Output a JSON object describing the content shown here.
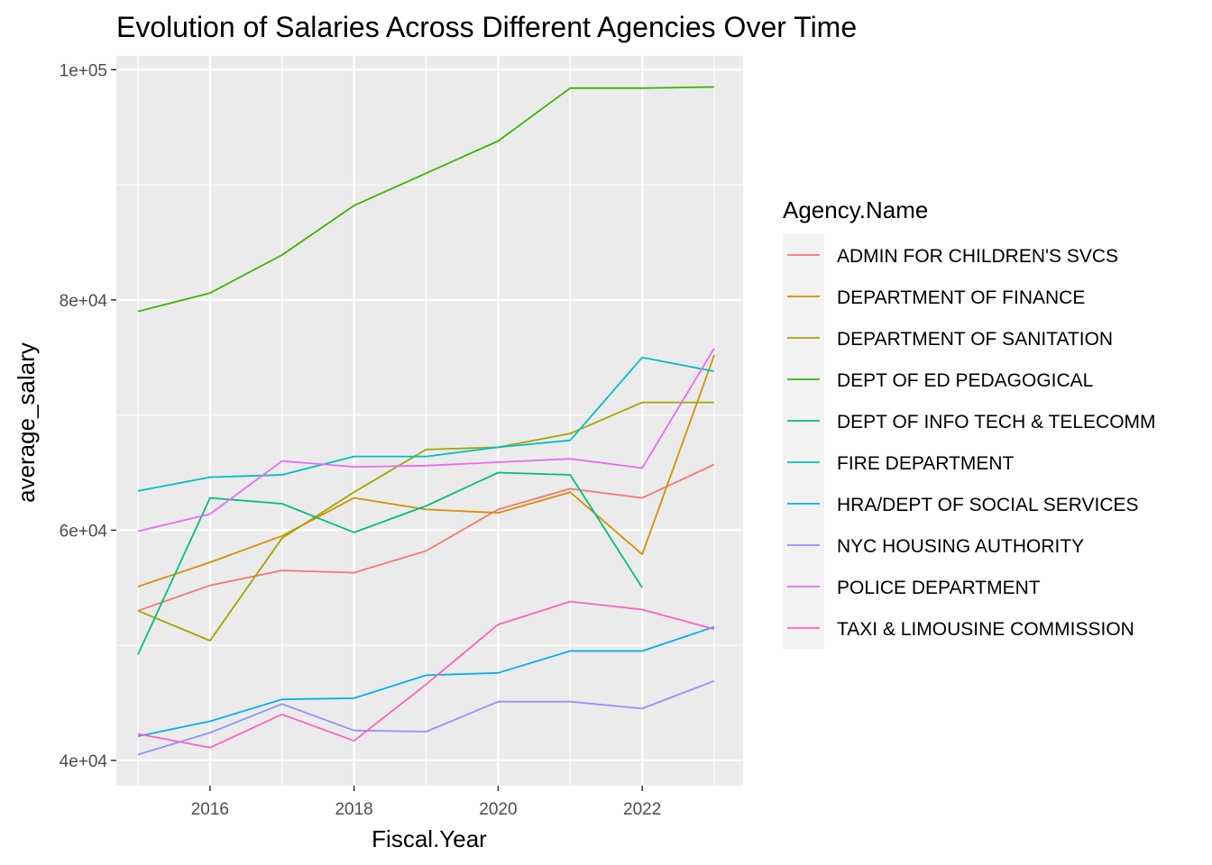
{
  "chart_data": {
    "type": "line",
    "title": "Evolution of Salaries Across Different Agencies Over Time",
    "xlabel": "Fiscal.Year",
    "ylabel": "average_salary",
    "xlim": [
      2014.7,
      2023.4
    ],
    "ylim": [
      37800,
      101200
    ],
    "x_ticks": [
      2016,
      2018,
      2020,
      2022
    ],
    "x_tick_labels": [
      "2016",
      "2018",
      "2020",
      "2022"
    ],
    "y_ticks": [
      40000,
      60000,
      80000,
      100000
    ],
    "y_tick_labels": [
      "4e+04",
      "6e+04",
      "8e+04",
      "1e+05"
    ],
    "grid": true,
    "legend_title": "Agency.Name",
    "legend_position": "right",
    "x": [
      2015,
      2016,
      2017,
      2018,
      2019,
      2020,
      2021,
      2022,
      2023
    ],
    "series": [
      {
        "name": "ADMIN FOR CHILDREN'S SVCS",
        "color": "#F8766D",
        "values": [
          53000,
          55200,
          56500,
          56300,
          58200,
          61800,
          63600,
          62800,
          65700
        ]
      },
      {
        "name": "DEPARTMENT OF FINANCE",
        "color": "#D89000",
        "values": [
          55100,
          57200,
          59500,
          62800,
          61800,
          61500,
          63300,
          57900,
          75200
        ]
      },
      {
        "name": "DEPARTMENT OF SANITATION",
        "color": "#A3A500",
        "values": [
          53000,
          50400,
          59300,
          63300,
          67000,
          67200,
          68400,
          71100,
          71100
        ]
      },
      {
        "name": "DEPT OF ED PEDAGOGICAL",
        "color": "#39B600",
        "values": [
          79000,
          80600,
          83900,
          88200,
          91000,
          93800,
          98400,
          98400,
          98500
        ]
      },
      {
        "name": "DEPT OF INFO TECH & TELECOMM",
        "color": "#00BF7D",
        "values": [
          49200,
          62800,
          62300,
          59800,
          62100,
          65000,
          64800,
          55000,
          null
        ]
      },
      {
        "name": "FIRE DEPARTMENT",
        "color": "#00BFC4",
        "values": [
          63400,
          64600,
          64800,
          66400,
          66400,
          67200,
          67800,
          75000,
          73800
        ]
      },
      {
        "name": "HRA/DEPT OF SOCIAL SERVICES",
        "color": "#00B0F6",
        "values": [
          42100,
          43400,
          45300,
          45400,
          47400,
          47600,
          49500,
          49500,
          51600
        ]
      },
      {
        "name": "NYC HOUSING AUTHORITY",
        "color": "#9590FF",
        "values": [
          40500,
          42400,
          44900,
          42600,
          42500,
          45100,
          45100,
          44500,
          46900
        ]
      },
      {
        "name": "POLICE DEPARTMENT",
        "color": "#E76BF3",
        "values": [
          59900,
          61400,
          66000,
          65500,
          65600,
          65900,
          66200,
          65400,
          75800
        ]
      },
      {
        "name": "TAXI & LIMOUSINE COMMISSION",
        "color": "#FF62BC",
        "values": [
          42300,
          41100,
          44000,
          41700,
          46600,
          51800,
          53800,
          53100,
          51400
        ]
      }
    ]
  }
}
